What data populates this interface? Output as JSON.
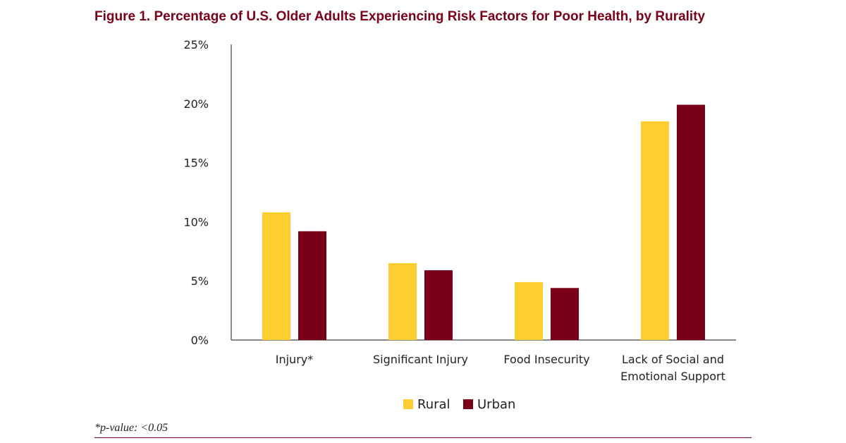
{
  "chart_data": {
    "type": "bar",
    "title": "Figure 1. Percentage of U.S. Older Adults Experiencing Risk Factors for Poor Health, by Rurality",
    "categories": [
      [
        "Injury*"
      ],
      [
        "Significant Injury"
      ],
      [
        "Food Insecurity"
      ],
      [
        "Lack of Social and",
        "Emotional Support"
      ]
    ],
    "series": [
      {
        "name": "Rural",
        "color": "#fcce31",
        "values": [
          10.8,
          6.5,
          4.9,
          18.5
        ]
      },
      {
        "name": "Urban",
        "color": "#7a0019",
        "values": [
          9.2,
          5.9,
          4.4,
          19.9
        ]
      }
    ],
    "ylim": [
      0,
      25
    ],
    "yticks": [
      0,
      5,
      10,
      15,
      20,
      25
    ],
    "ytick_labels": [
      "0%",
      "5%",
      "10%",
      "15%",
      "20%",
      "25%"
    ],
    "xlabel": "",
    "ylabel": "",
    "grid": false,
    "legend_position": "bottom-center"
  },
  "footnote": "*p-value: <0.05",
  "colors": {
    "title": "#7a0019",
    "axis": "#404040",
    "rule": "#7a0019"
  }
}
